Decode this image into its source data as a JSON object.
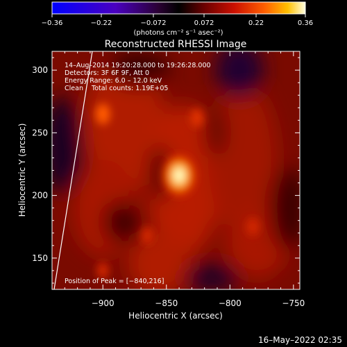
{
  "chart_data": {
    "type": "heatmap",
    "title": "Reconstructed RHESSI Image",
    "xlabel": "Heliocentric X (arcsec)",
    "ylabel": "Heliocentric Y (arcsec)",
    "xlim": [
      -940,
      -745
    ],
    "ylim": [
      125,
      315
    ],
    "x_ticks": [
      -900,
      -850,
      -800,
      -750
    ],
    "y_ticks": [
      150,
      200,
      250,
      300
    ],
    "x_tick_labels": [
      "−900",
      "−850",
      "−800",
      "−750"
    ],
    "y_tick_labels": [
      "150",
      "200",
      "250",
      "300"
    ],
    "colorbar": {
      "range": [
        -0.36,
        0.36
      ],
      "ticks": [
        -0.36,
        -0.22,
        -0.072,
        0.072,
        0.22,
        0.36
      ],
      "tick_labels": [
        "−0.36",
        "−0.22",
        "−0.072",
        "0.072",
        "0.22",
        "0.36"
      ],
      "units_label": "(photons cm⁻² s⁻¹ asec⁻²)"
    },
    "annotations": {
      "time_range": "14–Aug–2014 19:20:28.000 to 19:26:28.000",
      "detectors": "Detectors: 3F 6F 9F, Att 0",
      "energy": "Energy Range: 6.0 – 12.0 keV",
      "clean": "Clean    Total counts: 1.19E+05",
      "peak": "Position of Peak = [−840,216]"
    },
    "peak": {
      "x": -840,
      "y": 216,
      "value": 0.36
    },
    "sources": [
      {
        "x": -840,
        "y": 216,
        "value": 0.36
      },
      {
        "x": -900,
        "y": 265,
        "value": 0.17
      },
      {
        "x": -826,
        "y": 262,
        "value": 0.12
      },
      {
        "x": -782,
        "y": 175,
        "value": 0.11
      },
      {
        "x": -865,
        "y": 168,
        "value": 0.1
      },
      {
        "x": -900,
        "y": 140,
        "value": 0.08
      }
    ],
    "footer": "16–May–2022 02:35"
  }
}
